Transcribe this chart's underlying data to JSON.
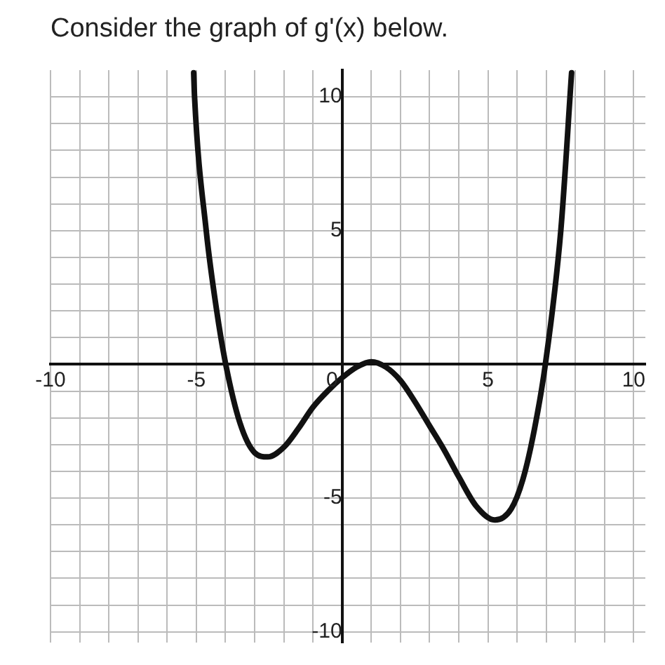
{
  "chart_data": {
    "type": "line",
    "title": "Consider the graph of g'(x) below.",
    "x": [
      -5.09,
      -5.06,
      -4.66,
      -4.3,
      -3.99,
      -3.5,
      -3,
      -2.55,
      -2,
      -1.5,
      -1,
      -0.5,
      0,
      0.5,
      1,
      1.5,
      2,
      2.5,
      3,
      3.5,
      4,
      4.6,
      5.24,
      5.8,
      6.2,
      6.6,
      6.97,
      7.5,
      7.87
    ],
    "series": [
      {
        "color": "#111111",
        "values": [
          10.9,
          10,
          5,
          2,
          0,
          -2.2,
          -3.3,
          -3.46,
          -3.1,
          -2.4,
          -1.6,
          -1.0,
          -0.5,
          -0.1,
          0.1,
          -0.1,
          -0.6,
          -1.4,
          -2.3,
          -3.2,
          -4.2,
          -5.3,
          -5.82,
          -5.4,
          -4.3,
          -2.4,
          0,
          5,
          10.9
        ]
      }
    ],
    "xlim": [
      -10,
      10.4
    ],
    "ylim": [
      -10.4,
      11
    ],
    "xticks": [
      -10,
      {
        "value": -9,
        "label": null
      },
      {
        "value": -8,
        "label": null
      },
      {
        "value": -7,
        "label": null
      },
      {
        "value": -6,
        "label": null
      },
      -5,
      {
        "value": -4,
        "label": null
      },
      {
        "value": -3,
        "label": null
      },
      {
        "value": -2,
        "label": null
      },
      {
        "value": -1,
        "label": null
      },
      0,
      {
        "value": 1,
        "label": null
      },
      {
        "value": 2,
        "label": null
      },
      {
        "value": 3,
        "label": null
      },
      {
        "value": 4,
        "label": null
      },
      5,
      {
        "value": 6,
        "label": null
      },
      {
        "value": 7,
        "label": null
      },
      {
        "value": 8,
        "label": null
      },
      {
        "value": 9,
        "label": null
      },
      10
    ],
    "yticks": [
      -10,
      {
        "value": -9,
        "label": null
      },
      {
        "value": -8,
        "label": null
      },
      {
        "value": -7,
        "label": null
      },
      {
        "value": -6,
        "label": null
      },
      -5,
      {
        "value": -4,
        "label": null
      },
      {
        "value": -3,
        "label": null
      },
      {
        "value": -2,
        "label": null
      },
      {
        "value": -1,
        "label": null
      },
      {
        "value": 0,
        "label": null
      },
      {
        "value": 1,
        "label": null
      },
      {
        "value": 2,
        "label": null
      },
      {
        "value": 3,
        "label": null
      },
      {
        "value": 4,
        "label": null
      },
      5,
      {
        "value": 6,
        "label": null
      },
      {
        "value": 7,
        "label": null
      },
      {
        "value": 8,
        "label": null
      },
      {
        "value": 9,
        "label": null
      },
      10
    ],
    "grid": true,
    "legend": false,
    "marker": "none",
    "line_style": "solid"
  }
}
